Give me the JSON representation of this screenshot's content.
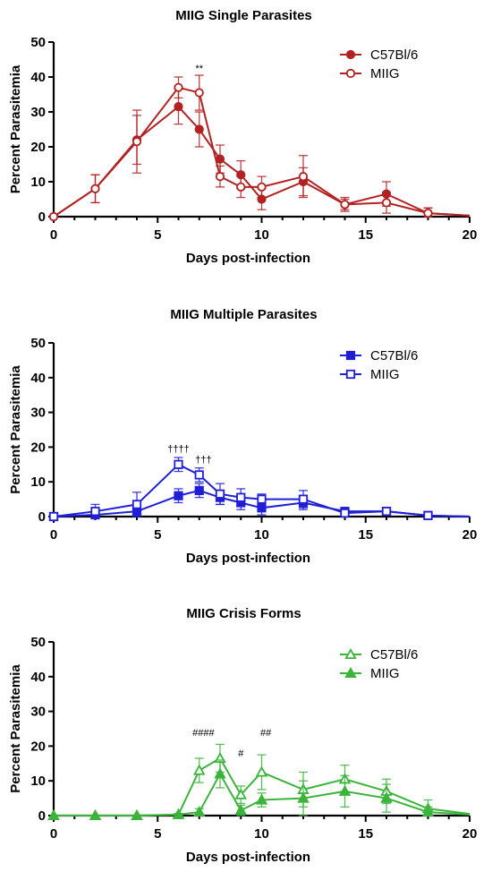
{
  "chart_data": [
    {
      "type": "line",
      "title": "MIIG Single Parasites",
      "xlabel": "Days post-infection",
      "ylabel": "Percent Parasitemia",
      "xlim": [
        0,
        20
      ],
      "ylim": [
        0,
        50
      ],
      "xticks": [
        "0",
        "5",
        "10",
        "15",
        "20"
      ],
      "yticks": [
        "0",
        "10",
        "20",
        "30",
        "40",
        "50"
      ],
      "color": "#b22222",
      "legend_position": "top-right",
      "series": [
        {
          "name": "C57Bl/6",
          "marker": "filled-circle",
          "x": [
            0,
            2,
            4,
            6,
            7,
            8,
            9,
            10,
            12,
            14,
            16,
            18,
            20
          ],
          "y": [
            0,
            8,
            22,
            31.5,
            25,
            16.5,
            12,
            5,
            10,
            3.5,
            6.5,
            1,
            0.3
          ],
          "err": [
            0,
            4,
            7,
            5,
            5,
            4,
            4,
            3,
            4,
            2,
            3.5,
            1.5,
            0
          ]
        },
        {
          "name": "MIIG",
          "marker": "open-circle",
          "x": [
            0,
            2,
            4,
            6,
            7,
            8,
            9,
            10,
            12,
            14,
            16,
            18,
            20
          ],
          "y": [
            0,
            8,
            21.5,
            37,
            35.5,
            11.5,
            8.5,
            8.5,
            11.5,
            3.5,
            4,
            1,
            0.3
          ],
          "err": [
            0,
            4,
            9,
            3,
            5,
            3,
            3,
            3,
            6,
            1.5,
            3,
            1.5,
            0
          ]
        }
      ],
      "annotations": [
        {
          "text": "**",
          "x": 7,
          "y": 41.5
        }
      ]
    },
    {
      "type": "line",
      "title": "MIIG Multiple Parasites",
      "xlabel": "Days post-infection",
      "ylabel": "Percent Parasitemia",
      "xlim": [
        0,
        20
      ],
      "ylim": [
        0,
        50
      ],
      "xticks": [
        "0",
        "5",
        "10",
        "15",
        "20"
      ],
      "yticks": [
        "0",
        "10",
        "20",
        "30",
        "40",
        "50"
      ],
      "color": "#1f1fd6",
      "legend_position": "top-right",
      "series": [
        {
          "name": "C57Bl/6",
          "marker": "filled-square",
          "x": [
            0,
            2,
            4,
            6,
            7,
            8,
            9,
            10,
            12,
            14,
            16,
            18,
            20
          ],
          "y": [
            0,
            0.5,
            1.5,
            6,
            7.5,
            5.5,
            4,
            2.5,
            4,
            1.5,
            1.5,
            0.3,
            0
          ],
          "err": [
            0,
            1,
            2,
            2,
            2,
            2,
            2,
            2,
            2,
            1,
            1,
            0.5,
            0
          ]
        },
        {
          "name": "MIIG",
          "marker": "open-square",
          "x": [
            0,
            2,
            4,
            6,
            7,
            8,
            9,
            10,
            12,
            14,
            16,
            18,
            20
          ],
          "y": [
            0,
            1.5,
            3.5,
            15,
            12,
            6.5,
            5.5,
            5,
            5,
            1,
            1.5,
            0.3,
            0
          ],
          "err": [
            0,
            2,
            3.5,
            2,
            2,
            3,
            2.5,
            1.5,
            2.5,
            1,
            1,
            0.5,
            0
          ]
        }
      ],
      "annotations": [
        {
          "text": "††††",
          "x": 6,
          "y": 18.5
        },
        {
          "text": "†††",
          "x": 7.2,
          "y": 15.5
        }
      ]
    },
    {
      "type": "line",
      "title": "MIIG Crisis Forms",
      "xlabel": "Days post-infection",
      "ylabel": "Percent Parasitemia",
      "xlim": [
        0,
        20
      ],
      "ylim": [
        0,
        50
      ],
      "xticks": [
        "0",
        "5",
        "10",
        "15",
        "20"
      ],
      "yticks": [
        "0",
        "10",
        "20",
        "30",
        "40",
        "50"
      ],
      "color": "#3cb43c",
      "legend_position": "top-right",
      "series": [
        {
          "name": "C57Bl/6",
          "marker": "open-triangle",
          "x": [
            0,
            2,
            4,
            6,
            7,
            8,
            9,
            10,
            12,
            14,
            16,
            18,
            20
          ],
          "y": [
            0,
            0,
            0,
            0.3,
            13,
            16.5,
            6,
            12.5,
            7.5,
            10.5,
            7,
            2,
            0.5
          ],
          "err": [
            0,
            0,
            0,
            0.3,
            3.5,
            4,
            2.5,
            5,
            5,
            4,
            3.5,
            2.5,
            0
          ]
        },
        {
          "name": "MIIG",
          "marker": "filled-triangle",
          "x": [
            0,
            2,
            4,
            6,
            7,
            8,
            9,
            10,
            12,
            14,
            16,
            18,
            20
          ],
          "y": [
            0,
            0,
            0,
            0.3,
            1,
            12,
            1.5,
            4.5,
            5,
            7,
            5,
            1,
            0.3
          ],
          "err": [
            0,
            0,
            0,
            0.3,
            1,
            4,
            1.5,
            2,
            5,
            4.5,
            4,
            1.5,
            0
          ]
        }
      ],
      "annotations": [
        {
          "text": "####",
          "x": 7.2,
          "y": 23
        },
        {
          "text": "#",
          "x": 9,
          "y": 17
        },
        {
          "text": "##",
          "x": 10.2,
          "y": 23
        }
      ]
    }
  ]
}
